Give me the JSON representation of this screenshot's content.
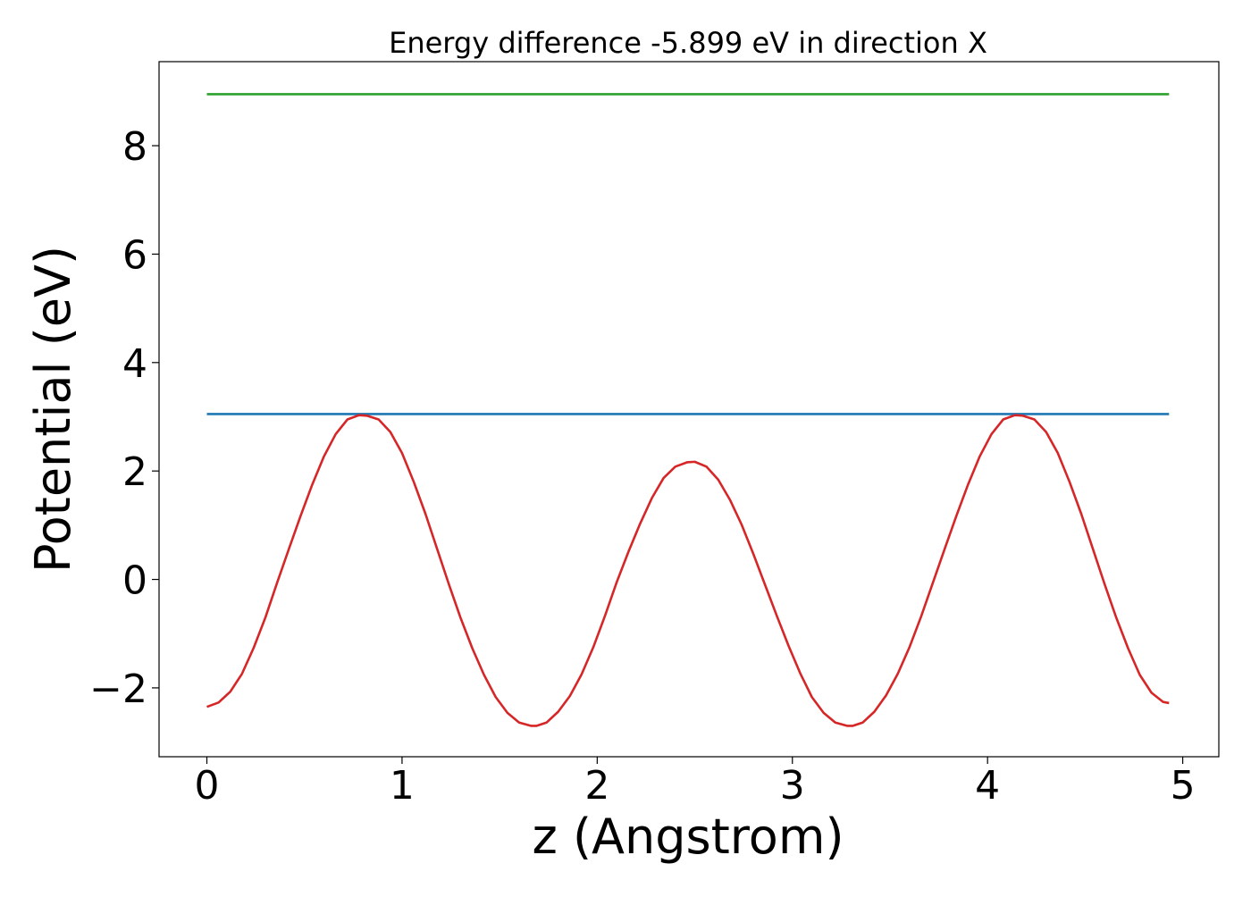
{
  "chart_data": {
    "type": "line",
    "title": "Energy difference -5.899 eV in direction X",
    "xlabel": "z (Angstrom)",
    "ylabel": "Potential (eV)",
    "xlim": [
      -0.245,
      5.185
    ],
    "ylim": [
      -3.27,
      9.55
    ],
    "xticks": [
      0,
      1,
      2,
      3,
      4,
      5
    ],
    "xtick_labels": [
      "0",
      "1",
      "2",
      "3",
      "4",
      "5"
    ],
    "yticks": [
      -2,
      0,
      2,
      4,
      6,
      8
    ],
    "ytick_labels": [
      "−2",
      "0",
      "2",
      "4",
      "6",
      "8"
    ],
    "grid": false,
    "legend": "none",
    "series": [
      {
        "color": "#2ca02c",
        "x": [
          0,
          4.93
        ],
        "y": [
          8.95,
          8.95
        ]
      },
      {
        "color": "#1f77b4",
        "x": [
          0,
          4.93
        ],
        "y": [
          3.05,
          3.05
        ]
      },
      {
        "color": "#d62728",
        "x": [
          0,
          0.06,
          0.12,
          0.18,
          0.24,
          0.3,
          0.36,
          0.42,
          0.48,
          0.54,
          0.6,
          0.66,
          0.72,
          0.78,
          0.82,
          0.88,
          0.94,
          1.0,
          1.06,
          1.12,
          1.18,
          1.24,
          1.3,
          1.36,
          1.42,
          1.48,
          1.54,
          1.6,
          1.66,
          1.69,
          1.74,
          1.8,
          1.86,
          1.92,
          1.98,
          2.04,
          2.1,
          2.16,
          2.22,
          2.28,
          2.34,
          2.4,
          2.46,
          2.5,
          2.56,
          2.62,
          2.68,
          2.74,
          2.8,
          2.86,
          2.92,
          2.98,
          3.04,
          3.1,
          3.16,
          3.22,
          3.28,
          3.31,
          3.36,
          3.42,
          3.48,
          3.54,
          3.6,
          3.66,
          3.72,
          3.78,
          3.84,
          3.9,
          3.96,
          4.02,
          4.08,
          4.14,
          4.18,
          4.24,
          4.3,
          4.36,
          4.42,
          4.48,
          4.54,
          4.6,
          4.66,
          4.72,
          4.78,
          4.84,
          4.9,
          4.93
        ],
        "y": [
          -2.35,
          -2.27,
          -2.07,
          -1.74,
          -1.26,
          -0.7,
          -0.06,
          0.56,
          1.17,
          1.75,
          2.27,
          2.68,
          2.95,
          3.03,
          3.02,
          2.95,
          2.72,
          2.33,
          1.8,
          1.21,
          0.56,
          -0.09,
          -0.71,
          -1.27,
          -1.76,
          -2.17,
          -2.46,
          -2.64,
          -2.7,
          -2.7,
          -2.64,
          -2.44,
          -2.15,
          -1.75,
          -1.25,
          -0.67,
          -0.05,
          0.51,
          1.03,
          1.5,
          1.87,
          2.08,
          2.16,
          2.17,
          2.08,
          1.84,
          1.47,
          1.01,
          0.47,
          -0.1,
          -0.67,
          -1.22,
          -1.73,
          -2.17,
          -2.46,
          -2.64,
          -2.7,
          -2.7,
          -2.64,
          -2.44,
          -2.14,
          -1.74,
          -1.25,
          -0.68,
          -0.06,
          0.56,
          1.17,
          1.75,
          2.27,
          2.68,
          2.95,
          3.03,
          3.02,
          2.95,
          2.72,
          2.33,
          1.8,
          1.21,
          0.56,
          -0.09,
          -0.71,
          -1.27,
          -1.76,
          -2.09,
          -2.26,
          -2.28
        ]
      }
    ]
  }
}
